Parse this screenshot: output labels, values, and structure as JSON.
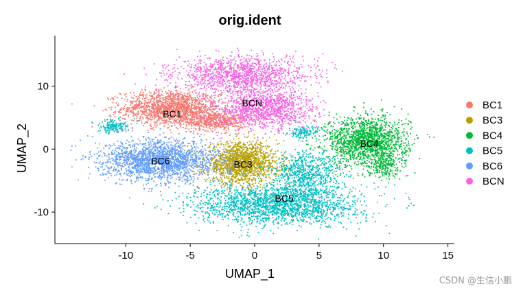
{
  "chart_data": {
    "type": "scatter",
    "title": "orig.ident",
    "xlabel": "UMAP_1",
    "ylabel": "UMAP_2",
    "xlim": [
      -15.5,
      15.5
    ],
    "ylim": [
      -15,
      18
    ],
    "x_ticks": [
      -10,
      -5,
      0,
      5,
      10,
      15
    ],
    "y_ticks": [
      -10,
      0,
      10
    ],
    "grid": false,
    "legend_position": "right",
    "series": [
      {
        "name": "BC1",
        "color": "#F8766D",
        "label_at": [
          -6.4,
          5.6
        ],
        "clusters": [
          {
            "cx": -6.5,
            "cy": 6.5,
            "sx": 1.9,
            "sy": 1.4,
            "n": 1500
          },
          {
            "cx": -3.0,
            "cy": 4.5,
            "sx": 1.2,
            "sy": 0.8,
            "n": 500
          }
        ]
      },
      {
        "name": "BC3",
        "color": "#B79F00",
        "label_at": [
          -0.9,
          -2.4
        ],
        "clusters": [
          {
            "cx": -1.0,
            "cy": -2.2,
            "sx": 1.4,
            "sy": 1.6,
            "n": 1500
          }
        ]
      },
      {
        "name": "BC4",
        "color": "#00BA38",
        "label_at": [
          8.9,
          0.9
        ],
        "clusters": [
          {
            "cx": 8.7,
            "cy": 1.2,
            "sx": 1.6,
            "sy": 2.0,
            "n": 1600
          },
          {
            "cx": 10.0,
            "cy": -2.5,
            "sx": 0.6,
            "sy": 1.0,
            "n": 200
          }
        ]
      },
      {
        "name": "BC5",
        "color": "#00BFC4",
        "label_at": [
          2.3,
          -7.8
        ],
        "clusters": [
          {
            "cx": 1.8,
            "cy": -8.8,
            "sx": 3.2,
            "sy": 1.6,
            "n": 2000
          },
          {
            "cx": 4.0,
            "cy": -4.0,
            "sx": 1.3,
            "sy": 1.8,
            "n": 700
          },
          {
            "cx": -11.0,
            "cy": 3.6,
            "sx": 0.6,
            "sy": 0.5,
            "n": 150
          },
          {
            "cx": 3.8,
            "cy": 2.6,
            "sx": 0.6,
            "sy": 0.5,
            "n": 120
          }
        ]
      },
      {
        "name": "BC6",
        "color": "#619CFF",
        "label_at": [
          -7.3,
          -1.9
        ],
        "clusters": [
          {
            "cx": -7.3,
            "cy": -1.8,
            "sx": 2.2,
            "sy": 1.6,
            "n": 2000
          }
        ]
      },
      {
        "name": "BCN",
        "color": "#F564E3",
        "label_at": [
          -0.2,
          7.3
        ],
        "clusters": [
          {
            "cx": -1.0,
            "cy": 11.8,
            "sx": 2.6,
            "sy": 1.4,
            "n": 1300
          },
          {
            "cx": 0.8,
            "cy": 6.3,
            "sx": 1.9,
            "sy": 1.6,
            "n": 1200
          }
        ]
      }
    ]
  },
  "watermark": "CSDN @生信小鹏"
}
